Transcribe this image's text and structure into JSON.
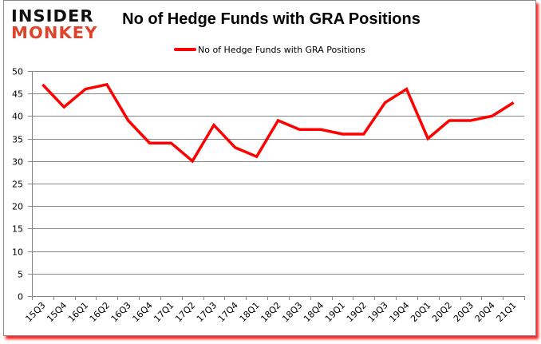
{
  "brand": {
    "logo_top": "INSIDER",
    "logo_bottom": "MONKEY",
    "logo_top_color": "#111111",
    "logo_bottom_color": "#e0432b"
  },
  "chart_data": {
    "type": "line",
    "title": "No of Hedge Funds with GRA Positions",
    "xlabel": "",
    "ylabel": "",
    "ylim": [
      0,
      50
    ],
    "yticks": [
      0,
      5,
      10,
      15,
      20,
      25,
      30,
      35,
      40,
      45,
      50
    ],
    "grid": true,
    "legend_position": "top",
    "categories": [
      "15Q3",
      "15Q4",
      "16Q1",
      "16Q2",
      "16Q3",
      "16Q4",
      "17Q1",
      "17Q2",
      "17Q3",
      "17Q4",
      "18Q1",
      "18Q2",
      "18Q3",
      "18Q4",
      "19Q1",
      "19Q2",
      "19Q3",
      "19Q4",
      "20Q1",
      "20Q2",
      "20Q3",
      "20Q4",
      "21Q1"
    ],
    "series": [
      {
        "name": "No of Hedge Funds with GRA Positions",
        "color": "#ff0000",
        "values": [
          47,
          42,
          46,
          47,
          39,
          34,
          34,
          30,
          38,
          33,
          31,
          39,
          37,
          37,
          36,
          36,
          43,
          46,
          35,
          39,
          39,
          40,
          43
        ]
      }
    ]
  },
  "colors": {
    "line": "#ff0000",
    "grid": "#868686",
    "frame_shadow": "#ff0000"
  }
}
